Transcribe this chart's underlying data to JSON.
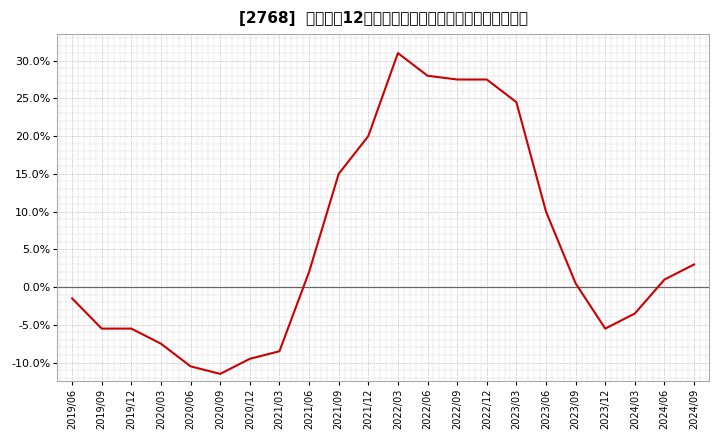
{
  "title": "[2768]  売上高の12か月移動合計の対前年同期増減率の推移",
  "x_labels": [
    "2019/06",
    "2019/09",
    "2019/12",
    "2020/03",
    "2020/06",
    "2020/09",
    "2020/12",
    "2021/03",
    "2021/06",
    "2021/09",
    "2021/12",
    "2022/03",
    "2022/06",
    "2022/09",
    "2022/12",
    "2023/03",
    "2023/06",
    "2023/09",
    "2023/12",
    "2024/03",
    "2024/06",
    "2024/09"
  ],
  "y_values": [
    -1.5,
    -5.5,
    -5.5,
    -7.5,
    -10.5,
    -11.5,
    -9.5,
    -8.5,
    2.0,
    15.0,
    20.0,
    31.0,
    28.0,
    27.5,
    27.5,
    24.5,
    10.0,
    0.5,
    -5.5,
    -3.5,
    1.0,
    3.0
  ],
  "line_color": "#cc0000",
  "line_width": 1.5,
  "bg_color": "#ffffff",
  "plot_bg_color": "#ffffff",
  "grid_color": "#999999",
  "zero_line_color": "#666666",
  "ylim": [
    -12.5,
    33.5
  ],
  "yticks": [
    -10.0,
    -5.0,
    0.0,
    5.0,
    10.0,
    15.0,
    20.0,
    25.0,
    30.0
  ],
  "title_fontsize": 11,
  "tick_fontsize": 8,
  "xtick_fontsize": 7
}
